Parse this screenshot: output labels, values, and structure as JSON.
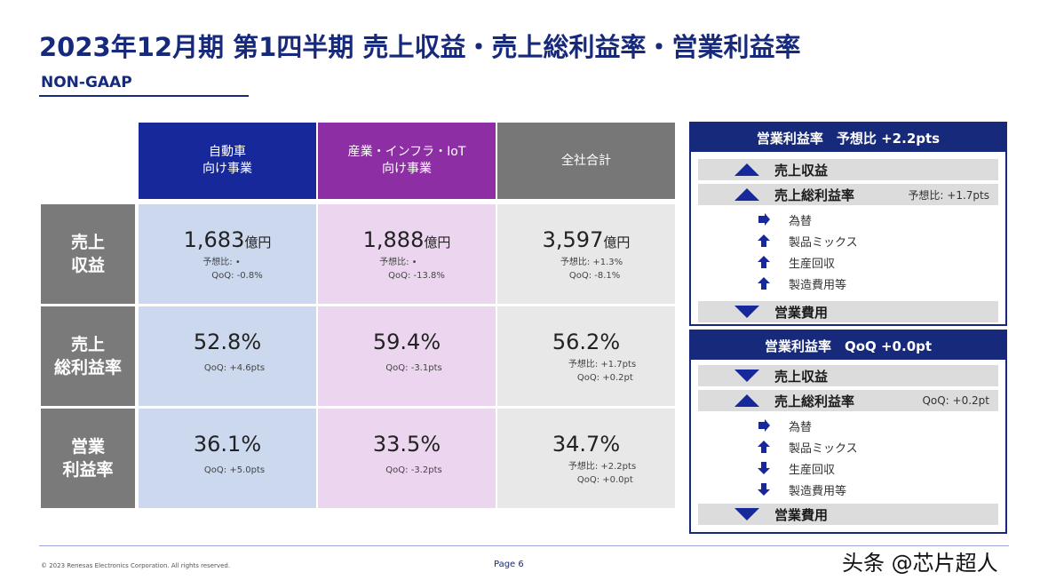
{
  "header": {
    "title": "2023年12月期 第1四半期 売上収益・売上総利益率・営業利益率",
    "subtitle": "NON-GAAP"
  },
  "table": {
    "columns": [
      {
        "line1": "自動車",
        "line2": "向け事業",
        "color": "#17299a"
      },
      {
        "line1": "産業・インフラ・IoT",
        "line2": "向け事業",
        "color": "#8e2ea5"
      },
      {
        "line1": "全社合計",
        "line2": "",
        "color": "#777777"
      }
    ],
    "rows": [
      {
        "label1": "売上",
        "label2": "収益",
        "cells": [
          {
            "value": "1,683",
            "unit": "億円",
            "note1": "予想比: •",
            "note2": "QoQ: -0.8%"
          },
          {
            "value": "1,888",
            "unit": "億円",
            "note1": "予想比: •",
            "note2": "QoQ: -13.8%"
          },
          {
            "value": "3,597",
            "unit": "億円",
            "note1": "予想比: +1.3%",
            "note2": "QoQ: -8.1%"
          }
        ]
      },
      {
        "label1": "売上",
        "label2": "総利益率",
        "cells": [
          {
            "value": "52.8%",
            "unit": "",
            "note1": "",
            "note2": "QoQ: +4.6pts"
          },
          {
            "value": "59.4%",
            "unit": "",
            "note1": "",
            "note2": "QoQ: -3.1pts"
          },
          {
            "value": "56.2%",
            "unit": "",
            "note1": "予想比: +1.7pts",
            "note2": "QoQ: +0.2pt"
          }
        ]
      },
      {
        "label1": "営業",
        "label2": "利益率",
        "cells": [
          {
            "value": "36.1%",
            "unit": "",
            "note1": "",
            "note2": "QoQ: +5.0pts"
          },
          {
            "value": "33.5%",
            "unit": "",
            "note1": "",
            "note2": "QoQ: -3.2pts"
          },
          {
            "value": "34.7%",
            "unit": "",
            "note1": "予想比: +2.2pts",
            "note2": "QoQ: +0.0pt"
          }
        ]
      }
    ]
  },
  "panel1": {
    "title": "営業利益率　予想比 +2.2pts",
    "items": [
      {
        "label": "売上収益",
        "arrow": "up",
        "note": ""
      },
      {
        "label": "売上総利益率",
        "arrow": "up",
        "note": "予想比: +1.7pts"
      },
      {
        "label": "為替",
        "arrow": "right"
      },
      {
        "label": "製品ミックス",
        "arrow": "up"
      },
      {
        "label": "生産回収",
        "arrow": "up"
      },
      {
        "label": "製造費用等",
        "arrow": "up"
      },
      {
        "label": "営業費用",
        "arrow": "down",
        "note": ""
      }
    ]
  },
  "panel2": {
    "title": "営業利益率　QoQ +0.0pt",
    "items": [
      {
        "label": "売上収益",
        "arrow": "down",
        "note": ""
      },
      {
        "label": "売上総利益率",
        "arrow": "up",
        "note": "QoQ: +0.2pt"
      },
      {
        "label": "為替",
        "arrow": "right"
      },
      {
        "label": "製品ミックス",
        "arrow": "up"
      },
      {
        "label": "生産回収",
        "arrow": "down"
      },
      {
        "label": "製造費用等",
        "arrow": "down"
      },
      {
        "label": "営業費用",
        "arrow": "down",
        "note": ""
      }
    ]
  },
  "footer": {
    "copyright": "© 2023 Renesas Electronics Corporation. All rights reserved.",
    "page": "Page 6",
    "watermark": "头条 @芯片超人"
  },
  "colors": {
    "brand": "#17297a",
    "arrow": "#17299a"
  }
}
